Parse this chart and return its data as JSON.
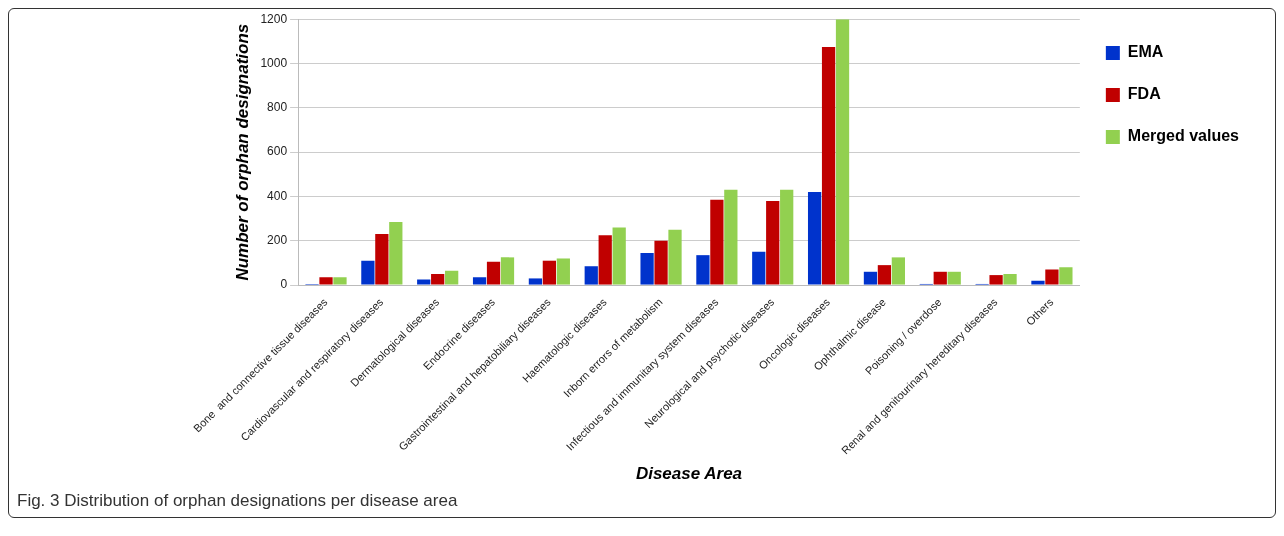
{
  "chart_data": {
    "type": "bar",
    "categories": [
      "Bone  and connective tissue diseases",
      "Cardiovascular and respiratory diseases",
      "Dermatological diseases",
      "Endocrine diseases",
      "Gastrointestinal and hepatobiliary diseases",
      "Haematologic diseases",
      "Inborn errors of metabolism",
      "Infectious and immunitary system diseases",
      "Neurological and psychotic diseases",
      "Oncologic diseases",
      "Ophthalmic disease",
      "Poisoning / overdose",
      "Renal and genitourinary hereditary diseases",
      "Others"
    ],
    "series": [
      {
        "name": "EMA",
        "color": "#0033cc",
        "values": [
          5,
          110,
          25,
          35,
          30,
          85,
          145,
          135,
          150,
          420,
          60,
          5,
          5,
          20
        ]
      },
      {
        "name": "FDA",
        "color": "#c00000",
        "values": [
          35,
          230,
          50,
          105,
          110,
          225,
          200,
          385,
          380,
          1075,
          90,
          60,
          45,
          70
        ]
      },
      {
        "name": "Merged values",
        "color": "#92d050",
        "values": [
          35,
          285,
          65,
          125,
          120,
          260,
          250,
          430,
          430,
          1200,
          125,
          60,
          50,
          80
        ]
      }
    ],
    "xlabel": "Disease Area",
    "ylabel": "Number of orphan designations",
    "ylim": [
      0,
      1200
    ],
    "yticks": [
      0,
      200,
      400,
      600,
      800,
      1000,
      1200
    ],
    "grid": "y",
    "legend": "top right",
    "annotations": [
      "Fig. 3 Distribution of orphan designations per disease area"
    ]
  }
}
